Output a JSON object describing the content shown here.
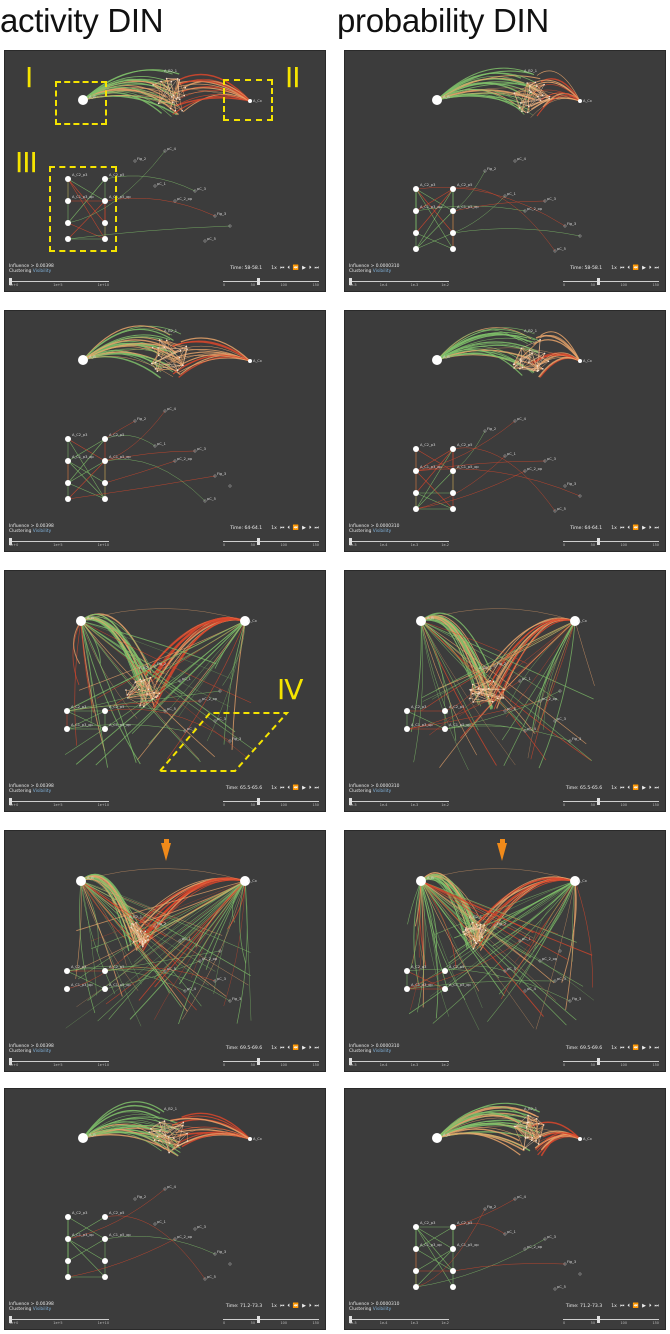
{
  "headings": {
    "left": "activity DIN",
    "right": "probability DIN"
  },
  "colors": {
    "panel_bg": "#3c3c3c",
    "edge_green": "#7fc06a",
    "edge_red": "#d9462b",
    "edge_orange": "#e8a36a",
    "node": "#ffffff",
    "annotation": "#f5e400",
    "marker": "#f08a1a"
  },
  "controls": {
    "clustering": "Clustering",
    "visibility": "Visibility",
    "speed": "1x",
    "icons": [
      "skip-back-icon",
      "step-back-icon",
      "rewind-icon",
      "play-icon",
      "step-forward-icon",
      "skip-forward-icon"
    ],
    "icon_glyphs": [
      "⏮",
      "⏴",
      "⏪",
      "▶",
      "⏵",
      "⏭"
    ],
    "time_ticks": [
      "0",
      "50",
      "100",
      "150"
    ],
    "left_ticks_activity": [
      "1e+0",
      "1e+5",
      "1e+10"
    ],
    "left_ticks_probability": [
      "1e-5",
      "1e-4",
      "1e-3",
      "1e-2"
    ]
  },
  "rows": [
    {
      "time": "Time: 58-58.1",
      "activity": {
        "influence": "Influence > 0.00398",
        "annotations": [
          "I",
          "II",
          "III"
        ]
      },
      "probability": {
        "influence": "Influence > 0.0000310"
      }
    },
    {
      "time": "Time: 64-64.1",
      "activity": {
        "influence": "Influence > 0.00398"
      },
      "probability": {
        "influence": "Influence > 0.0000310"
      }
    },
    {
      "time": "Time: 65.5-65.6",
      "activity": {
        "influence": "Influence > 0.00398",
        "annotations": [
          "IV"
        ]
      },
      "probability": {
        "influence": "Influence > 0.0000310"
      }
    },
    {
      "time": "Time: 69.5-69.6",
      "activity": {
        "influence": "Influence > 0.00398"
      },
      "probability": {
        "influence": "Influence > 0.0000310"
      }
    },
    {
      "time": "Time: 71.2-73.3",
      "activity": {
        "influence": "Influence > 0.00398"
      },
      "probability": {
        "influence": "Influence > 0.0000310"
      }
    }
  ],
  "node_labels": {
    "top_left": "A_B",
    "cluster": "A_B2_1",
    "top_right": "A_Cx",
    "grid_1": "A_C2_p3",
    "grid_2": "A_C2_p5",
    "grid_3": "A_C1_p3_op",
    "grid_4": "A_C1_p5_op",
    "misc_1": "Fig_2",
    "misc_2": "pC_1",
    "misc_3": "pC_2_op",
    "misc_4": "pC_3",
    "misc_5": "Fig_3",
    "misc_6": "pC_4",
    "misc_7": "pC_5"
  }
}
